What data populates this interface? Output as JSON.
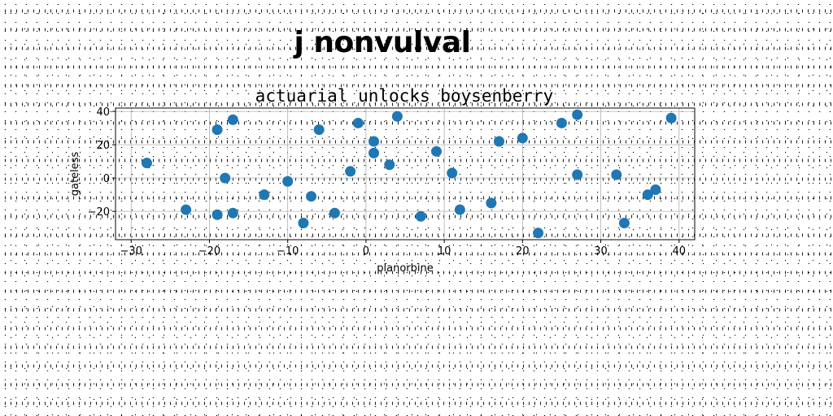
{
  "header": {
    "suptitle": "j nonvulval"
  },
  "chart_data": {
    "type": "scatter",
    "title": "actuarial unlocks boysenberry",
    "xlabel": "planorbine",
    "ylabel": "gateless",
    "xlim": [
      -32,
      42
    ],
    "ylim": [
      -37,
      42
    ],
    "xticks": [
      -30,
      -20,
      -10,
      0,
      10,
      20,
      30,
      40
    ],
    "yticks": [
      -20,
      0,
      20,
      40
    ],
    "grid": true,
    "marker_color": "#1f77b4",
    "points": [
      {
        "x": -28,
        "y": 9
      },
      {
        "x": -23,
        "y": -19
      },
      {
        "x": -19,
        "y": 29
      },
      {
        "x": -19,
        "y": -22
      },
      {
        "x": -18,
        "y": 0
      },
      {
        "x": -17,
        "y": 35
      },
      {
        "x": -17,
        "y": -21
      },
      {
        "x": -13,
        "y": -10
      },
      {
        "x": -10,
        "y": -2
      },
      {
        "x": -8,
        "y": -27
      },
      {
        "x": -7,
        "y": -11
      },
      {
        "x": -6,
        "y": 29
      },
      {
        "x": -4,
        "y": -21
      },
      {
        "x": -2,
        "y": 4
      },
      {
        "x": -1,
        "y": 33
      },
      {
        "x": 1,
        "y": 22
      },
      {
        "x": 1,
        "y": 15
      },
      {
        "x": 3,
        "y": 8
      },
      {
        "x": 4,
        "y": 37
      },
      {
        "x": 7,
        "y": -23
      },
      {
        "x": 9,
        "y": 16
      },
      {
        "x": 11,
        "y": 3
      },
      {
        "x": 12,
        "y": -19
      },
      {
        "x": 16,
        "y": -15
      },
      {
        "x": 17,
        "y": 22
      },
      {
        "x": 20,
        "y": 24
      },
      {
        "x": 22,
        "y": -33
      },
      {
        "x": 25,
        "y": 33
      },
      {
        "x": 27,
        "y": 38
      },
      {
        "x": 27,
        "y": 2
      },
      {
        "x": 32,
        "y": 2
      },
      {
        "x": 33,
        "y": -27
      },
      {
        "x": 36,
        "y": -10
      },
      {
        "x": 37,
        "y": -7
      },
      {
        "x": 39,
        "y": 36
      }
    ]
  }
}
